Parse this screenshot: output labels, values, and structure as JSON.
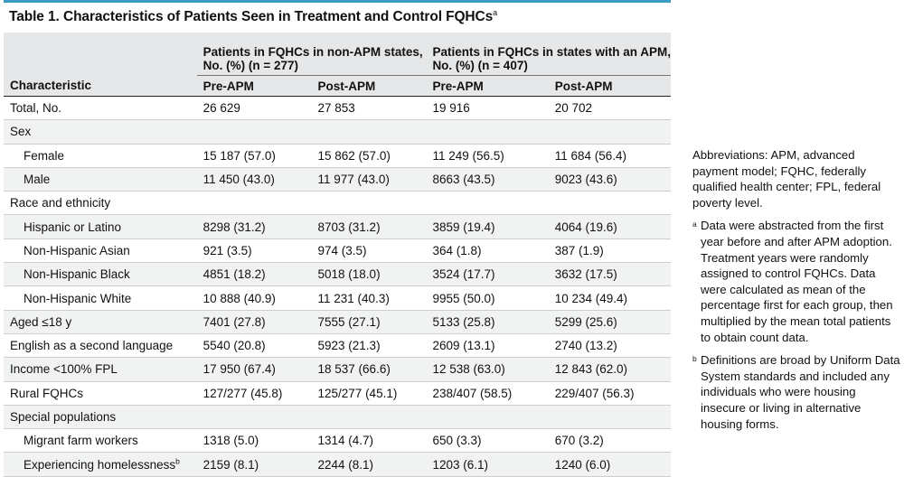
{
  "title": "Table 1. Characteristics of Patients Seen in Treatment and Control FQHCs",
  "title_footnote": "a",
  "header": {
    "characteristic": "Characteristic",
    "group1": "Patients in FQHCs in non-APM states, No. (%) (n = 277)",
    "group1_line1": "Patients in FQHCs in non-APM states,",
    "group1_line2": "No. (%) (n = 277)",
    "group2_line1": "Patients in FQHCs in states with an APM,",
    "group2_line2": "No. (%) (n = 407)",
    "pre": "Pre-APM",
    "post": "Post-APM"
  },
  "rows": [
    {
      "label": "Total, No.",
      "v": [
        "26 629",
        "27 853",
        "19 916",
        "20 702"
      ]
    },
    {
      "label": "Sex",
      "v": [
        "",
        "",
        "",
        ""
      ]
    },
    {
      "label": "Female",
      "v": [
        "15 187 (57.0)",
        "15 862 (57.0)",
        "11 249 (56.5)",
        "11 684 (56.4)"
      ]
    },
    {
      "label": "Male",
      "v": [
        "11 450 (43.0)",
        "11 977 (43.0)",
        "8663 (43.5)",
        "9023 (43.6)"
      ]
    },
    {
      "label": "Race and ethnicity",
      "v": [
        "",
        "",
        "",
        ""
      ]
    },
    {
      "label": "Hispanic or Latino",
      "v": [
        "8298 (31.2)",
        "8703 (31.2)",
        "3859 (19.4)",
        "4064 (19.6)"
      ]
    },
    {
      "label": "Non-Hispanic Asian",
      "v": [
        "921 (3.5)",
        "974 (3.5)",
        "364 (1.8)",
        "387 (1.9)"
      ]
    },
    {
      "label": "Non-Hispanic Black",
      "v": [
        "4851 (18.2)",
        "5018 (18.0)",
        "3524 (17.7)",
        "3632 (17.5)"
      ]
    },
    {
      "label": "Non-Hispanic White",
      "v": [
        "10 888 (40.9)",
        "11 231 (40.3)",
        "9955 (50.0)",
        "10 234 (49.4)"
      ]
    },
    {
      "label": "Aged ≤18 y",
      "v": [
        "7401 (27.8)",
        "7555 (27.1)",
        "5133 (25.8)",
        "5299 (25.6)"
      ]
    },
    {
      "label": "English as a second language",
      "v": [
        "5540 (20.8)",
        "5923 (21.3)",
        "2609 (13.1)",
        "2740 (13.2)"
      ]
    },
    {
      "label": "Income <100% FPL",
      "v": [
        "17 950 (67.4)",
        "18 537 (66.6)",
        "12 538 (63.0)",
        "12 843 (62.0)"
      ]
    },
    {
      "label": "Rural FQHCs",
      "v": [
        "127/277 (45.8)",
        "125/277 (45.1)",
        "238/407 (58.5)",
        "229/407 (56.3)"
      ]
    },
    {
      "label": "Special populations",
      "v": [
        "",
        "",
        "",
        ""
      ]
    },
    {
      "label": "Migrant farm workers",
      "v": [
        "1318 (5.0)",
        "1314 (4.7)",
        "650 (3.3)",
        "670 (3.2)"
      ]
    },
    {
      "label": "Experiencing homelessness",
      "fn": "b",
      "v": [
        "2159 (8.1)",
        "2244 (8.1)",
        "1203 (6.1)",
        "1240 (6.0)"
      ]
    }
  ],
  "notes": {
    "abbreviations": "Abbreviations: APM, advanced payment model; FQHC, federally qualified health center; FPL, federal poverty level.",
    "fn_a_mark": "a",
    "fn_a": "Data were abstracted from the first year before and after APM adoption. Treatment years were randomly assigned to control FQHCs. Data were calculated as mean of the percentage first for each group, then multiplied by the mean total patients to obtain count data.",
    "fn_b_mark": "b",
    "fn_b": "Definitions are broad by Uniform Data System standards and included any individuals who were housing insecure or living in alternative housing forms."
  }
}
